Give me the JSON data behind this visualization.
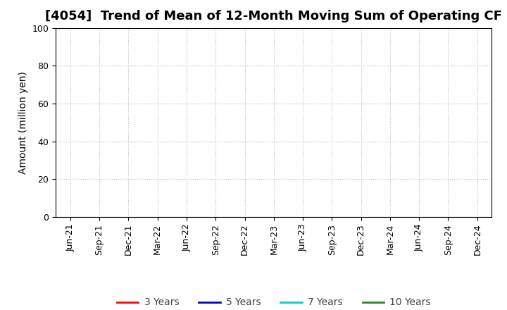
{
  "title": "[4054]  Trend of Mean of 12-Month Moving Sum of Operating CF",
  "ylabel": "Amount (million yen)",
  "ylim": [
    0,
    100
  ],
  "yticks": [
    0,
    20,
    40,
    60,
    80,
    100
  ],
  "xtick_labels": [
    "Jun-21",
    "Sep-21",
    "Dec-21",
    "Mar-22",
    "Jun-22",
    "Sep-22",
    "Dec-22",
    "Mar-23",
    "Jun-23",
    "Sep-23",
    "Dec-23",
    "Mar-24",
    "Jun-24",
    "Sep-24",
    "Dec-24"
  ],
  "legend_entries": [
    {
      "label": "3 Years",
      "color": "#ff0000"
    },
    {
      "label": "5 Years",
      "color": "#0000cc"
    },
    {
      "label": "7 Years",
      "color": "#00cccc"
    },
    {
      "label": "10 Years",
      "color": "#228b22"
    }
  ],
  "background_color": "#ffffff",
  "plot_bg_color": "#ffffff",
  "grid_color": "#bbbbbb",
  "title_fontsize": 13,
  "axis_label_fontsize": 10,
  "tick_fontsize": 9,
  "legend_fontsize": 10
}
